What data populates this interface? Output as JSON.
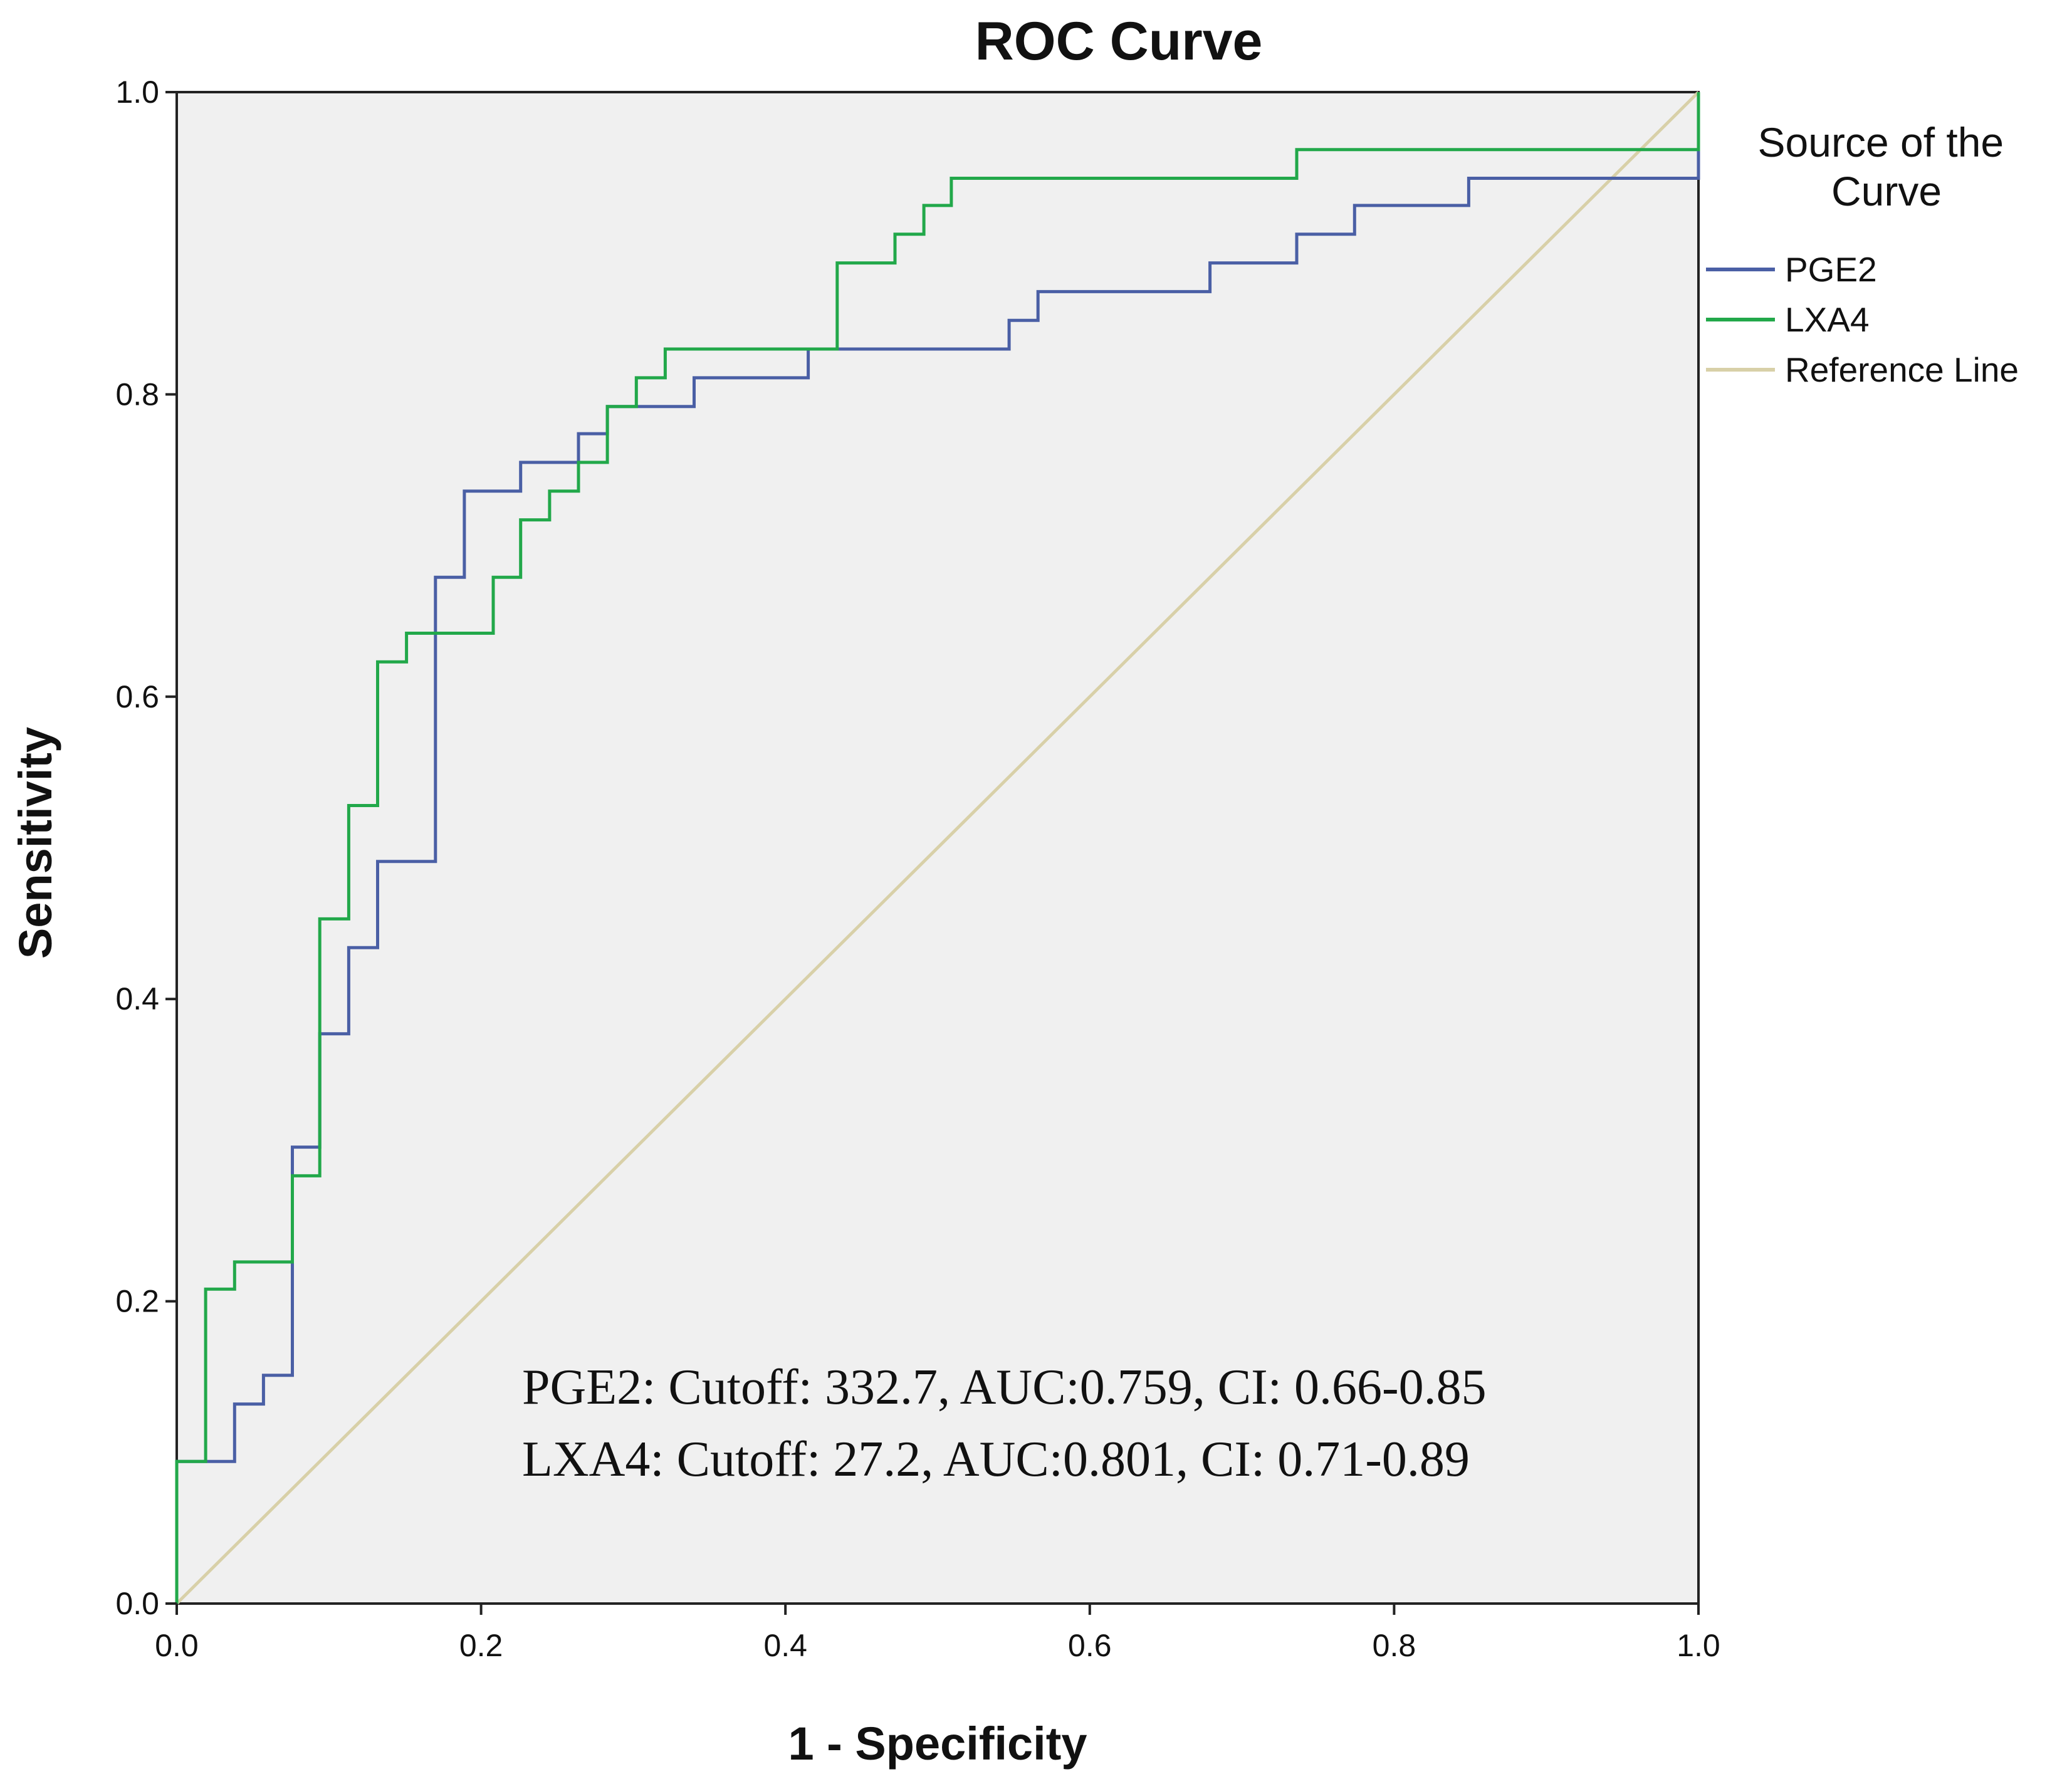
{
  "chart_data": {
    "type": "line",
    "title": "ROC Curve",
    "xlabel": "1 - Specificity",
    "ylabel": "Sensitivity",
    "xlim": [
      0,
      1
    ],
    "ylim": [
      0,
      1
    ],
    "x_ticks": [
      "0.0",
      "0.2",
      "0.4",
      "0.6",
      "0.8",
      "1.0"
    ],
    "y_ticks": [
      "0.0",
      "0.2",
      "0.4",
      "0.6",
      "0.8",
      "1.0"
    ],
    "grid": false,
    "legend": {
      "title": "Source of the Curve",
      "position": "right",
      "entries": [
        "PGE2",
        "LXA4",
        "Reference Line"
      ]
    },
    "series": [
      {
        "name": "PGE2",
        "color": "#4a5fa5",
        "points": [
          [
            0,
            0
          ],
          [
            0,
            0.094
          ],
          [
            0.038,
            0.094
          ],
          [
            0.038,
            0.132
          ],
          [
            0.057,
            0.132
          ],
          [
            0.057,
            0.151
          ],
          [
            0.076,
            0.151
          ],
          [
            0.076,
            0.302
          ],
          [
            0.094,
            0.302
          ],
          [
            0.094,
            0.377
          ],
          [
            0.113,
            0.377
          ],
          [
            0.113,
            0.434
          ],
          [
            0.132,
            0.434
          ],
          [
            0.132,
            0.491
          ],
          [
            0.17,
            0.491
          ],
          [
            0.17,
            0.679
          ],
          [
            0.189,
            0.679
          ],
          [
            0.189,
            0.736
          ],
          [
            0.226,
            0.736
          ],
          [
            0.226,
            0.755
          ],
          [
            0.264,
            0.755
          ],
          [
            0.264,
            0.774
          ],
          [
            0.283,
            0.774
          ],
          [
            0.283,
            0.792
          ],
          [
            0.34,
            0.792
          ],
          [
            0.34,
            0.811
          ],
          [
            0.415,
            0.811
          ],
          [
            0.415,
            0.83
          ],
          [
            0.547,
            0.83
          ],
          [
            0.547,
            0.849
          ],
          [
            0.566,
            0.849
          ],
          [
            0.566,
            0.868
          ],
          [
            0.679,
            0.868
          ],
          [
            0.679,
            0.887
          ],
          [
            0.736,
            0.887
          ],
          [
            0.736,
            0.906
          ],
          [
            0.774,
            0.906
          ],
          [
            0.774,
            0.925
          ],
          [
            0.849,
            0.925
          ],
          [
            0.849,
            0.943
          ],
          [
            1.0,
            0.943
          ],
          [
            1.0,
            1.0
          ]
        ]
      },
      {
        "name": "LXA4",
        "color": "#22a84a",
        "points": [
          [
            0,
            0
          ],
          [
            0,
            0.094
          ],
          [
            0.019,
            0.094
          ],
          [
            0.019,
            0.208
          ],
          [
            0.038,
            0.208
          ],
          [
            0.038,
            0.226
          ],
          [
            0.076,
            0.226
          ],
          [
            0.076,
            0.283
          ],
          [
            0.094,
            0.283
          ],
          [
            0.094,
            0.453
          ],
          [
            0.113,
            0.453
          ],
          [
            0.113,
            0.528
          ],
          [
            0.132,
            0.528
          ],
          [
            0.132,
            0.623
          ],
          [
            0.151,
            0.623
          ],
          [
            0.151,
            0.642
          ],
          [
            0.208,
            0.642
          ],
          [
            0.208,
            0.679
          ],
          [
            0.226,
            0.679
          ],
          [
            0.226,
            0.717
          ],
          [
            0.245,
            0.717
          ],
          [
            0.245,
            0.736
          ],
          [
            0.264,
            0.736
          ],
          [
            0.264,
            0.755
          ],
          [
            0.283,
            0.755
          ],
          [
            0.283,
            0.792
          ],
          [
            0.302,
            0.792
          ],
          [
            0.302,
            0.811
          ],
          [
            0.321,
            0.811
          ],
          [
            0.321,
            0.83
          ],
          [
            0.434,
            0.83
          ],
          [
            0.434,
            0.887
          ],
          [
            0.472,
            0.887
          ],
          [
            0.472,
            0.906
          ],
          [
            0.491,
            0.906
          ],
          [
            0.491,
            0.925
          ],
          [
            0.509,
            0.925
          ],
          [
            0.509,
            0.943
          ],
          [
            0.736,
            0.943
          ],
          [
            0.736,
            0.962
          ],
          [
            1.0,
            0.962
          ],
          [
            1.0,
            1.0
          ]
        ]
      },
      {
        "name": "Reference Line",
        "color": "#d8d0a8",
        "points": [
          [
            0,
            0
          ],
          [
            1,
            1
          ]
        ]
      }
    ],
    "annotations": [
      "PGE2: Cutoff: 332.7, AUC:0.759, CI: 0.66-0.85",
      "LXA4: Cutoff: 27.2, AUC:0.801, CI: 0.71-0.89"
    ]
  }
}
